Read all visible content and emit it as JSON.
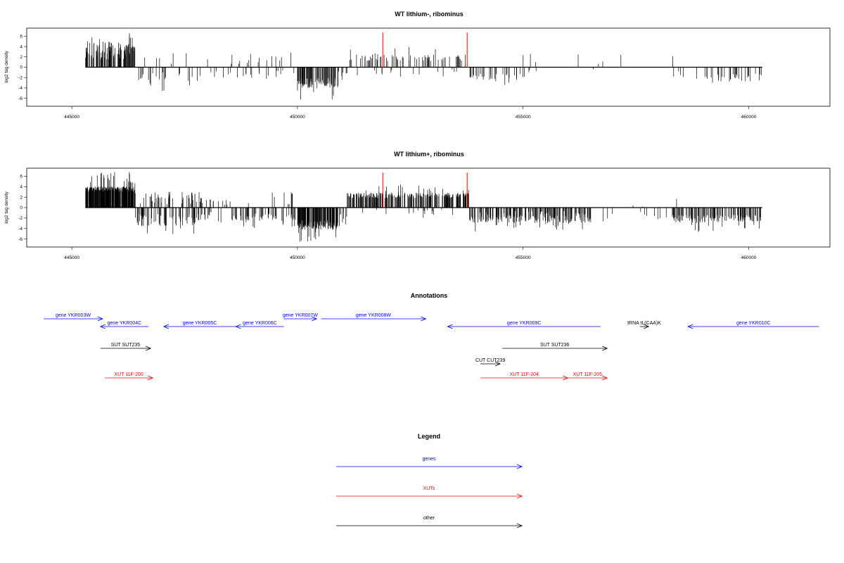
{
  "colors": {
    "gene": "#0000ff",
    "xut": "#ff0000",
    "other": "#000000",
    "marker": "#ff0000",
    "signal": "#000000"
  },
  "chart_data": [
    {
      "type": "bar",
      "title": "WT lithium-, ribominus",
      "ylabel": "log2 tag density",
      "xlim": [
        444000,
        461800
      ],
      "ylim": [
        -7,
        7
      ],
      "x_ticks": [
        445000,
        450000,
        455000,
        460000
      ],
      "x_tick_labels": [
        "445000",
        "450000",
        "455000",
        "460000"
      ],
      "y_ticks": [
        -6,
        -4,
        -2,
        0,
        2,
        4,
        6
      ],
      "y_tick_labels": [
        "-6",
        "-4",
        "-2",
        "0",
        "2",
        "4",
        "6"
      ],
      "baseline": {
        "from": 445300,
        "to": 460300
      },
      "markers": [
        {
          "x": 451890,
          "y": 6.7
        },
        {
          "x": 453760,
          "y": 6.7
        }
      ],
      "regions": [
        [
          445300,
          446400,
          1.5,
          4.2,
          110,
          0
        ],
        [
          446400,
          447900,
          -1.0,
          -2.6,
          25,
          6
        ],
        [
          448000,
          449200,
          -0.8,
          -1.8,
          14,
          10
        ],
        [
          449300,
          450000,
          -0.6,
          -1.6,
          8,
          6
        ],
        [
          450000,
          450900,
          -2.0,
          -3.6,
          90,
          0
        ],
        [
          450900,
          451100,
          -0.8,
          -1.5,
          8,
          0
        ],
        [
          451100,
          453800,
          1.2,
          2.2,
          70,
          0
        ],
        [
          451100,
          453800,
          -0.4,
          -1.2,
          15,
          0
        ],
        [
          453800,
          454900,
          -1.2,
          -2.2,
          30,
          0
        ],
        [
          454900,
          455300,
          -0.5,
          -1.2,
          6,
          3
        ],
        [
          455300,
          458300,
          -0.2,
          -0.5,
          1,
          4
        ],
        [
          458300,
          459300,
          -0.8,
          -1.8,
          10,
          1
        ],
        [
          459300,
          460300,
          -1.2,
          -2.4,
          28,
          0
        ]
      ]
    },
    {
      "type": "bar",
      "title": "WT lithium+, ribominus",
      "ylabel": "log2 tag density",
      "xlim": [
        444000,
        461800
      ],
      "ylim": [
        -7,
        7
      ],
      "x_ticks": [
        445000,
        450000,
        455000,
        460000
      ],
      "x_tick_labels": [
        "445000",
        "450000",
        "455000",
        "460000"
      ],
      "y_ticks": [
        -6,
        -4,
        -2,
        0,
        2,
        4,
        6
      ],
      "y_tick_labels": [
        "-6",
        "-4",
        "-2",
        "0",
        "2",
        "4",
        "6"
      ],
      "baseline": {
        "from": 445300,
        "to": 460300
      },
      "markers": [
        {
          "x": 451890,
          "y": 6.7
        },
        {
          "x": 453760,
          "y": 6.7
        }
      ],
      "regions": [
        [
          445300,
          446400,
          3.0,
          3.8,
          260,
          0
        ],
        [
          446400,
          447900,
          -1.2,
          -3.0,
          70,
          50
        ],
        [
          447900,
          448500,
          0.4,
          1.3,
          10,
          10
        ],
        [
          448500,
          450000,
          -1.0,
          -2.2,
          60,
          10
        ],
        [
          450000,
          450900,
          -2.4,
          -3.8,
          150,
          0
        ],
        [
          450900,
          451100,
          -1.0,
          -2.0,
          8,
          0
        ],
        [
          451100,
          453800,
          1.8,
          2.6,
          240,
          0
        ],
        [
          451100,
          453800,
          -0.4,
          -1.2,
          15,
          0
        ],
        [
          453800,
          456500,
          -1.6,
          -2.6,
          120,
          0
        ],
        [
          454000,
          456500,
          1.2,
          2.4,
          0,
          80
        ],
        [
          456500,
          458300,
          0.2,
          0.6,
          2,
          10
        ],
        [
          458300,
          459300,
          -1.4,
          -2.6,
          70,
          1
        ],
        [
          459300,
          460300,
          -1.3,
          -2.4,
          60,
          0
        ]
      ]
    }
  ],
  "annotations": {
    "title": "Annotations",
    "features": [
      {
        "label": "gene YKR003W",
        "cls": "gene",
        "from": 445000,
        "to": 447700,
        "row": 0,
        "label_row": "above"
      },
      {
        "label": "gene YKR004C",
        "cls": "gene",
        "from": 447600,
        "to": 449800,
        "row": 1,
        "label_row": "above"
      },
      {
        "label": "gene YKR005C",
        "cls": "gene",
        "from": 450500,
        "to": 453800,
        "row": 1,
        "label_row": "above"
      },
      {
        "label": "gene YKR006C",
        "cls": "gene",
        "from": 453800,
        "to": 456000,
        "row": 1,
        "label_row": "above"
      },
      {
        "label": "gene YKR007W",
        "cls": "gene",
        "from": 456000,
        "to": 457500,
        "row": 0,
        "label_row": "above"
      },
      {
        "label": "gene YKR008W",
        "cls": "gene",
        "from": 457700,
        "to": 462500,
        "row": 0,
        "label_row": "above"
      },
      {
        "label": "gene YKR009C",
        "cls": "gene",
        "from": 463500,
        "to": 470500,
        "row": 1,
        "label_row": "above"
      },
      {
        "label": "gene YKR010C",
        "cls": "gene",
        "from": 474500,
        "to": 480500,
        "row": 1,
        "label_row": "above"
      },
      {
        "label": "tRNA tL(CAA)K",
        "cls": "other",
        "from": 472300,
        "to": 472700,
        "row": 1,
        "label_row": "above"
      },
      {
        "label": "SUT SUT235",
        "cls": "other",
        "from": 447600,
        "to": 449900,
        "row": 2,
        "label_row": "above"
      },
      {
        "label": "SUT SUT236",
        "cls": "other",
        "from": 466000,
        "to": 470800,
        "row": 2,
        "label_row": "above"
      },
      {
        "label": "CUT CUT239",
        "cls": "other",
        "from": 465000,
        "to": 465900,
        "row": 3,
        "label_row": "above"
      },
      {
        "label": "XUT 11F-200",
        "cls": "xut",
        "from": 447800,
        "to": 450000,
        "row": 4,
        "label_row": "above"
      },
      {
        "label": "XUT 11F-204",
        "cls": "xut",
        "from": 465000,
        "to": 469000,
        "row": 4,
        "label_row": "above"
      },
      {
        "label": "XUT 11F-205",
        "cls": "xut",
        "from": 469000,
        "to": 470800,
        "row": 4,
        "label_row": "above"
      }
    ]
  },
  "legend": {
    "title": "Legend",
    "items": [
      {
        "label": "genes",
        "cls": "gene"
      },
      {
        "label": "XUTs",
        "cls": "xut"
      },
      {
        "label": "other",
        "cls": "other"
      }
    ]
  }
}
